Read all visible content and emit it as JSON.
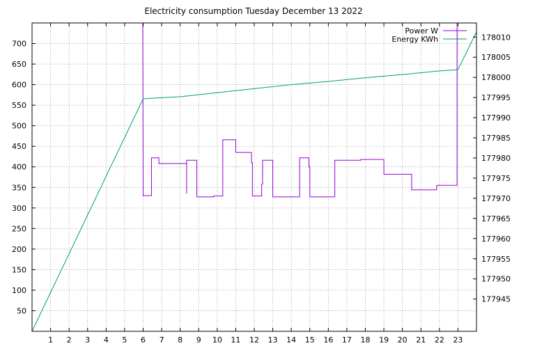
{
  "chart_data": {
    "type": "line",
    "title": "Electricity consumption Tuesday December 13 2022",
    "grid": true,
    "legend_position": "top-right",
    "xlim": [
      0,
      24
    ],
    "x_ticks": [
      1,
      2,
      3,
      4,
      5,
      6,
      7,
      8,
      9,
      10,
      11,
      12,
      13,
      14,
      15,
      16,
      17,
      18,
      19,
      20,
      21,
      22,
      23
    ],
    "y_left": {
      "range": [
        0,
        750
      ],
      "ticks": [
        50,
        100,
        150,
        200,
        250,
        300,
        350,
        400,
        450,
        500,
        550,
        600,
        650,
        700
      ]
    },
    "y_right": {
      "range": [
        177937,
        178013.5
      ],
      "ticks": [
        177945,
        177950,
        177955,
        177960,
        177965,
        177970,
        177975,
        177980,
        177985,
        177990,
        177995,
        178000,
        178005,
        178010
      ]
    },
    "series": [
      {
        "name": "Power W",
        "axis": "left",
        "color": "#9400d3",
        "step": true,
        "points": [
          [
            5.98,
            750
          ],
          [
            6.0,
            330
          ],
          [
            6.45,
            330
          ],
          [
            6.45,
            422
          ],
          [
            6.85,
            422
          ],
          [
            6.85,
            408
          ],
          [
            8.35,
            408
          ],
          [
            8.35,
            335
          ],
          [
            8.35,
            416
          ],
          [
            8.9,
            416
          ],
          [
            8.9,
            327
          ],
          [
            9.8,
            327
          ],
          [
            9.8,
            329
          ],
          [
            10.3,
            329
          ],
          [
            10.3,
            466
          ],
          [
            11.0,
            466
          ],
          [
            11.0,
            435
          ],
          [
            11.85,
            435
          ],
          [
            11.85,
            410
          ],
          [
            11.9,
            410
          ],
          [
            11.9,
            329
          ],
          [
            12.4,
            329
          ],
          [
            12.4,
            358
          ],
          [
            12.45,
            358
          ],
          [
            12.45,
            416
          ],
          [
            13.0,
            416
          ],
          [
            13.0,
            327
          ],
          [
            14.45,
            327
          ],
          [
            14.45,
            422
          ],
          [
            14.95,
            422
          ],
          [
            14.95,
            400
          ],
          [
            15.0,
            400
          ],
          [
            15.0,
            327
          ],
          [
            16.35,
            327
          ],
          [
            16.35,
            416
          ],
          [
            17.75,
            416
          ],
          [
            17.75,
            418
          ],
          [
            19.0,
            418
          ],
          [
            19.0,
            382
          ],
          [
            20.5,
            382
          ],
          [
            20.5,
            344
          ],
          [
            21.85,
            344
          ],
          [
            21.85,
            355
          ],
          [
            22.95,
            355
          ],
          [
            22.95,
            750
          ]
        ]
      },
      {
        "name": "Energy KWh",
        "axis": "right",
        "color": "#009e73",
        "step": false,
        "points": [
          [
            0.0,
            177937
          ],
          [
            6.0,
            177994.7
          ],
          [
            8.0,
            177995.2
          ],
          [
            10.0,
            177996.2
          ],
          [
            12.0,
            177997.2
          ],
          [
            14.0,
            177998.2
          ],
          [
            16.0,
            177999.0
          ],
          [
            18.0,
            177999.9
          ],
          [
            20.0,
            178000.7
          ],
          [
            22.0,
            178001.6
          ],
          [
            23.0,
            178001.9
          ],
          [
            24.0,
            178011.3
          ]
        ]
      }
    ]
  }
}
